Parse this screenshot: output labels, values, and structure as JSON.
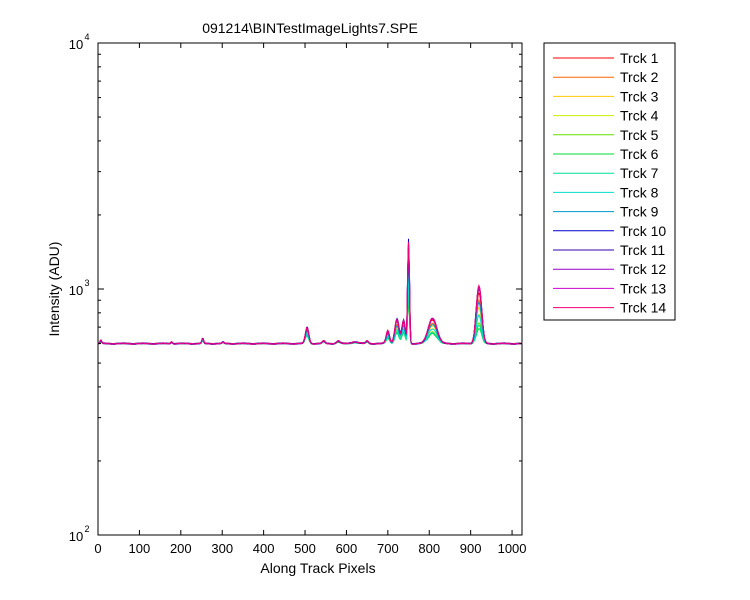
{
  "chart_data": {
    "type": "line",
    "title": "091214\\BINTestImageLights7.SPE",
    "xlabel": "Along Track Pixels",
    "ylabel": "Intensity (ADU)",
    "xlim": [
      0,
      1024
    ],
    "ylim": [
      100,
      10000
    ],
    "yscale": "log",
    "x_ticks": [
      0,
      100,
      200,
      300,
      400,
      500,
      600,
      700,
      800,
      900,
      1000
    ],
    "y_ticks": [
      {
        "value": 100,
        "base": "10",
        "exp": "2"
      },
      {
        "value": 1000,
        "base": "10",
        "exp": "3"
      },
      {
        "value": 10000,
        "base": "10",
        "exp": "4"
      }
    ],
    "grid": false,
    "legend_position": "outside-right",
    "baseline": 600,
    "peak_x": [
      7,
      178,
      253,
      302,
      505,
      545,
      580,
      620,
      650,
      700,
      722,
      738,
      750,
      808,
      920
    ],
    "peak_widths": [
      2,
      2,
      2,
      2,
      4,
      3,
      4,
      8,
      3,
      4,
      5,
      4,
      2,
      10,
      6
    ],
    "series": [
      {
        "name": "Trck 1",
        "color": "#ff0000",
        "peaks": [
          20,
          12,
          30,
          8,
          90,
          15,
          15,
          10,
          15,
          70,
          140,
          130,
          880,
          150,
          360
        ]
      },
      {
        "name": "Trck 2",
        "color": "#ff6600",
        "peaks": [
          16,
          10,
          26,
          7,
          80,
          13,
          13,
          9,
          13,
          60,
          120,
          110,
          760,
          130,
          300
        ]
      },
      {
        "name": "Trck 3",
        "color": "#ffcc00",
        "peaks": [
          12,
          8,
          22,
          6,
          70,
          11,
          12,
          8,
          12,
          50,
          100,
          95,
          620,
          110,
          240
        ]
      },
      {
        "name": "Trck 4",
        "color": "#ccee00",
        "peaks": [
          10,
          7,
          18,
          5,
          60,
          10,
          10,
          7,
          10,
          40,
          85,
          80,
          480,
          90,
          190
        ]
      },
      {
        "name": "Trck 5",
        "color": "#66dd00",
        "peaks": [
          8,
          6,
          16,
          5,
          50,
          9,
          9,
          6,
          9,
          30,
          70,
          65,
          360,
          70,
          130
        ]
      },
      {
        "name": "Trck 6",
        "color": "#00dd33",
        "peaks": [
          8,
          6,
          16,
          5,
          45,
          9,
          9,
          6,
          9,
          30,
          60,
          60,
          300,
          60,
          90
        ]
      },
      {
        "name": "Trck 7",
        "color": "#00dd99",
        "peaks": [
          8,
          6,
          16,
          5,
          50,
          9,
          9,
          6,
          9,
          32,
          65,
          65,
          360,
          65,
          110
        ]
      },
      {
        "name": "Trck 8",
        "color": "#00ddcc",
        "peaks": [
          10,
          7,
          18,
          5,
          60,
          10,
          10,
          7,
          10,
          40,
          85,
          85,
          500,
          90,
          180
        ]
      },
      {
        "name": "Trck 9",
        "color": "#0099cc",
        "peaks": [
          12,
          8,
          22,
          6,
          75,
          12,
          12,
          8,
          12,
          55,
          110,
          110,
          700,
          120,
          280
        ]
      },
      {
        "name": "Trck 10",
        "color": "#0000cc",
        "peaks": [
          18,
          10,
          30,
          8,
          100,
          15,
          15,
          10,
          15,
          75,
          160,
          150,
          1000,
          160,
          430
        ]
      },
      {
        "name": "Trck 11",
        "color": "#3300aa",
        "peaks": [
          16,
          10,
          28,
          8,
          95,
          14,
          14,
          10,
          14,
          70,
          150,
          140,
          930,
          160,
          420
        ]
      },
      {
        "name": "Trck 12",
        "color": "#9900cc",
        "peaks": [
          16,
          10,
          28,
          8,
          90,
          14,
          14,
          10,
          14,
          70,
          145,
          135,
          900,
          155,
          400
        ]
      },
      {
        "name": "Trck 13",
        "color": "#cc00cc",
        "peaks": [
          18,
          10,
          28,
          8,
          95,
          15,
          15,
          10,
          15,
          75,
          150,
          140,
          920,
          160,
          410
        ]
      },
      {
        "name": "Trck 14",
        "color": "#ee0077",
        "peaks": [
          20,
          12,
          30,
          8,
          100,
          15,
          15,
          10,
          15,
          78,
          155,
          145,
          950,
          165,
          430
        ]
      }
    ]
  }
}
